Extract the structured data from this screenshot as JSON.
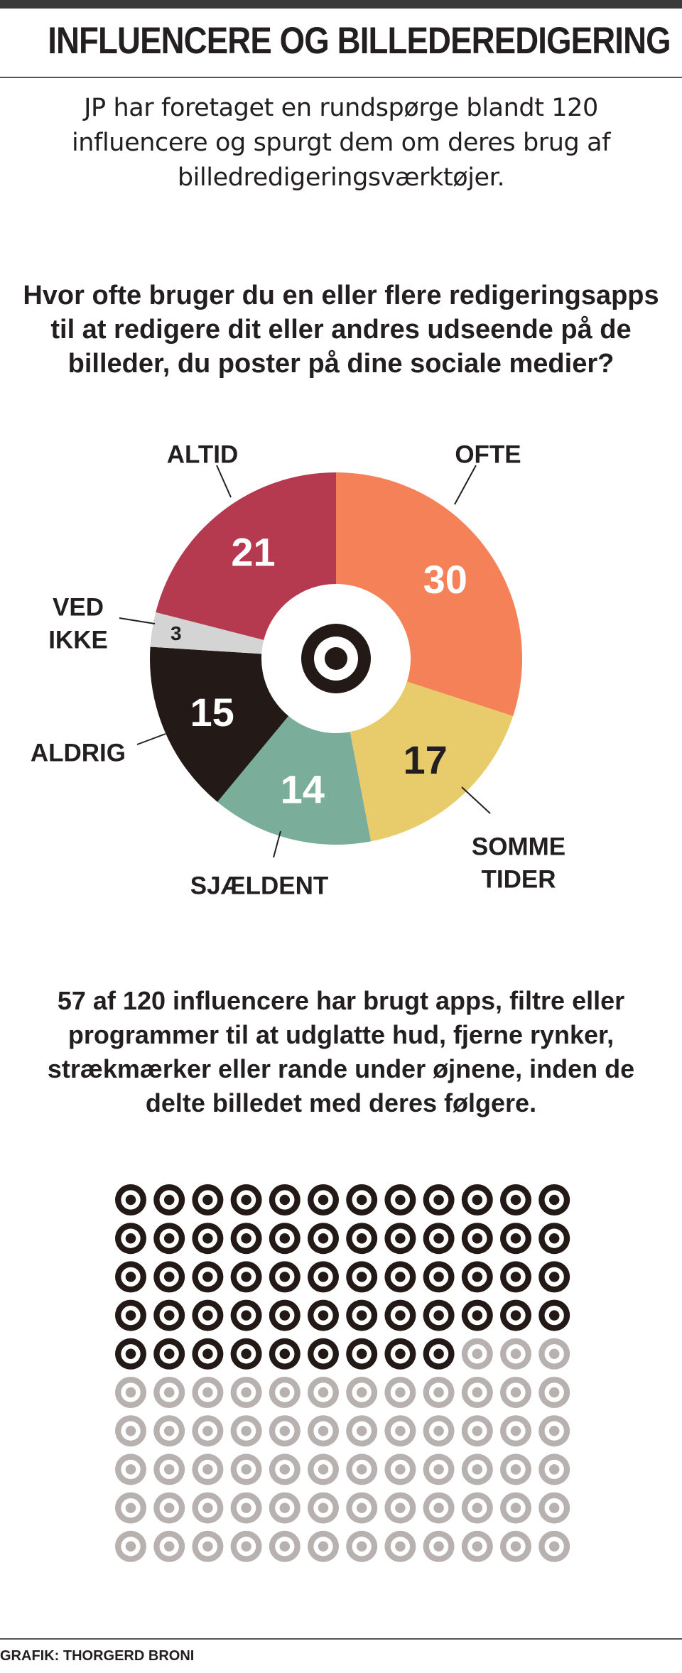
{
  "header": {
    "title": "INFLUENCERE OG BILLEDEREDIGERING"
  },
  "intro": "JP har foretaget en rundspørge blandt 120 influencere og spurgt dem om deres brug af billedredigeringsværktøjer.",
  "question": {
    "line1": "Hvor ofte bruger du en eller flere redigeringsapps",
    "line2": "til at redigere dit eller andres udseende på de",
    "line3": "billeder, du poster på dine sociale medier?"
  },
  "stat": {
    "line1": "57 af 120 influencere har brugt apps, filtre eller",
    "line2": "programmer til at udglatte hud, fjerne rynker,",
    "line3": "strækmærker eller rande under øjnene, inden de",
    "line4": "delte billedet med deres følgere."
  },
  "credit": "GRAFIK: THORGERD BRONI",
  "chart_data": [
    {
      "type": "pie",
      "style": "donut",
      "title": "Hvor ofte bruger du en eller flere redigeringsapps til at redigere dit eller andres udseende på de billeder, du poster på dine sociale medier?",
      "slices": [
        {
          "label": "OFTE",
          "value": 30,
          "color": "#f58158",
          "text_color": "#ffffff"
        },
        {
          "label": "SOMME TIDER",
          "value": 17,
          "color": "#e8cb6b",
          "text_color": "#231f20"
        },
        {
          "label": "SJÆLDENT",
          "value": 14,
          "color": "#7aae9a",
          "text_color": "#ffffff"
        },
        {
          "label": "ALDRIG",
          "value": 15,
          "color": "#231a18",
          "text_color": "#ffffff"
        },
        {
          "label": "VED IKKE",
          "value": 3,
          "color": "#d4d4d4",
          "text_color": "#231f20"
        },
        {
          "label": "ALTID",
          "value": 21,
          "color": "#b5394f",
          "text_color": "#ffffff"
        }
      ],
      "total": 100
    },
    {
      "type": "icon-array",
      "total": 120,
      "highlighted": 57,
      "columns": 12,
      "highlight_color": "#231a18",
      "base_color": "#b7b1b0",
      "icon": "target-icon"
    }
  ]
}
